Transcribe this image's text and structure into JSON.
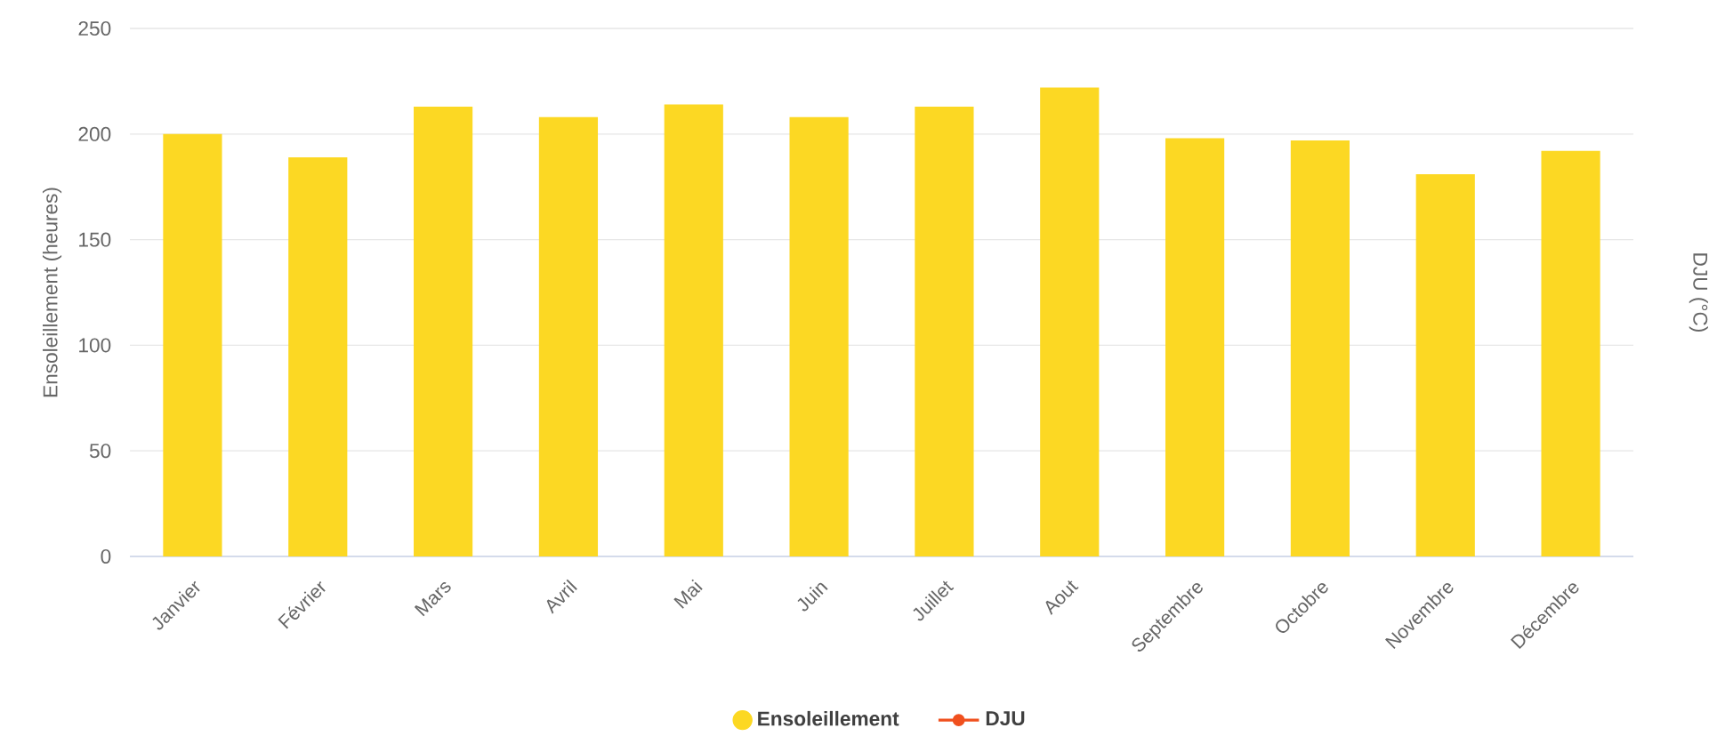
{
  "chart_data": {
    "type": "bar",
    "ylabel": "Ensoleillement (heures)",
    "y2label": "DJU (°C)",
    "categories": [
      "Janvier",
      "Février",
      "Mars",
      "Avril",
      "Mai",
      "Juin",
      "Juillet",
      "Aout",
      "Septembre",
      "Octobre",
      "Novembre",
      "Décembre"
    ],
    "series": [
      {
        "name": "Ensoleillement",
        "color": "#fcd823",
        "values": [
          200,
          189,
          213,
          208,
          214,
          208,
          213,
          222,
          198,
          197,
          181,
          192
        ]
      },
      {
        "name": "DJU",
        "type": "line",
        "axis": "y2",
        "color": "#f0501e",
        "marker": "circle",
        "values": [
          null,
          null,
          null,
          null,
          null,
          null,
          null,
          null,
          null,
          null,
          null,
          null
        ]
      }
    ],
    "ylim": [
      0,
      250
    ],
    "yticks": [
      0,
      50,
      100,
      150,
      200,
      250
    ],
    "grid": "y",
    "legend": "bottom"
  }
}
